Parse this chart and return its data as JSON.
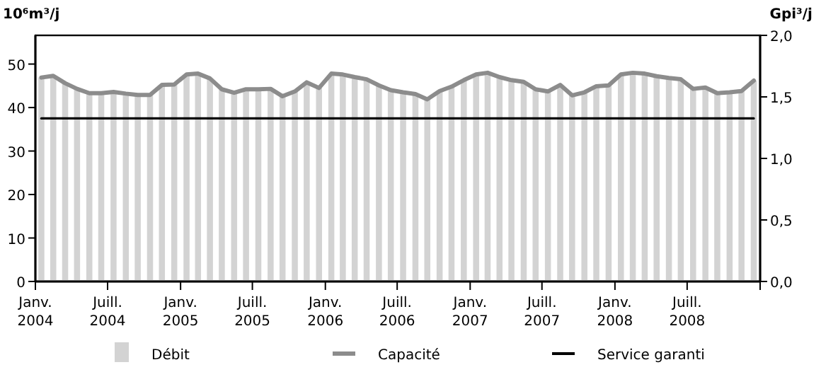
{
  "chart_data": {
    "type": "bar",
    "ylabel": "10⁶m³/j",
    "y2label": "Gpi³/j",
    "x": [
      "2004-01-16",
      "2004-02-15",
      "2004-03-16",
      "2004-04-15",
      "2004-05-16",
      "2004-06-15",
      "2004-07-16",
      "2004-08-16",
      "2004-09-15",
      "2004-10-16",
      "2004-11-15",
      "2004-12-16",
      "2005-01-16",
      "2005-02-14",
      "2005-03-16",
      "2005-04-15",
      "2005-05-16",
      "2005-06-15",
      "2005-07-16",
      "2005-08-16",
      "2005-09-15",
      "2005-10-16",
      "2005-11-15",
      "2005-12-16",
      "2006-01-16",
      "2006-02-14",
      "2006-03-16",
      "2006-04-15",
      "2006-05-16",
      "2006-06-15",
      "2006-07-16",
      "2006-08-16",
      "2006-09-15",
      "2006-10-16",
      "2006-11-15",
      "2006-12-16",
      "2007-01-16",
      "2007-02-14",
      "2007-03-16",
      "2007-04-15",
      "2007-05-16",
      "2007-06-15",
      "2007-07-16",
      "2007-08-16",
      "2007-09-15",
      "2007-10-16",
      "2007-11-15",
      "2007-12-16",
      "2008-01-16",
      "2008-02-15",
      "2008-03-16",
      "2008-04-15",
      "2008-05-16",
      "2008-06-15",
      "2008-07-16",
      "2008-08-16",
      "2008-09-15",
      "2008-10-16",
      "2008-11-15",
      "2008-12-16"
    ],
    "series": [
      {
        "name": "Débit",
        "color": "#d3d3d3",
        "values": [
          46.9,
          47.3,
          45.6,
          44.3,
          43.3,
          43.3,
          43.6,
          43.2,
          42.9,
          42.9,
          45.2,
          45.3,
          47.6,
          47.8,
          46.7,
          44.2,
          43.4,
          44.2,
          44.2,
          44.3,
          42.6,
          43.7,
          45.8,
          44.5,
          47.8,
          47.6,
          47.0,
          46.5,
          45.1,
          44.0,
          43.5,
          43.1,
          41.9,
          43.8,
          44.8,
          46.3,
          47.6,
          48.0,
          47.0,
          46.3,
          45.9,
          44.2,
          43.7,
          45.2,
          42.8,
          43.5,
          44.9,
          45.1,
          47.6,
          48.0,
          47.8,
          47.2,
          46.8,
          46.5,
          44.3,
          44.6,
          43.3,
          43.5,
          43.8,
          46.2
        ]
      },
      {
        "name": "Capacité",
        "type": "line",
        "color": "#8c8c8c",
        "values": [
          46.9,
          47.3,
          45.6,
          44.3,
          43.3,
          43.3,
          43.6,
          43.2,
          42.9,
          42.9,
          45.2,
          45.3,
          47.6,
          47.8,
          46.7,
          44.2,
          43.4,
          44.2,
          44.2,
          44.3,
          42.6,
          43.7,
          45.8,
          44.5,
          47.8,
          47.6,
          47.0,
          46.5,
          45.1,
          44.0,
          43.5,
          43.1,
          41.9,
          43.8,
          44.8,
          46.3,
          47.6,
          48.0,
          47.0,
          46.3,
          45.9,
          44.2,
          43.7,
          45.2,
          42.8,
          43.5,
          44.9,
          45.1,
          47.6,
          48.0,
          47.8,
          47.2,
          46.8,
          46.5,
          44.3,
          44.6,
          43.3,
          43.5,
          43.8,
          46.2
        ]
      },
      {
        "name": "Service garanti",
        "type": "line",
        "color": "#000000",
        "values": [
          37.5,
          37.5,
          37.5,
          37.5,
          37.5,
          37.5,
          37.5,
          37.5,
          37.5,
          37.5,
          37.5,
          37.5,
          37.5,
          37.5,
          37.5,
          37.5,
          37.5,
          37.5,
          37.5,
          37.5,
          37.5,
          37.5,
          37.5,
          37.5,
          37.5,
          37.5,
          37.5,
          37.5,
          37.5,
          37.5,
          37.5,
          37.5,
          37.5,
          37.5,
          37.5,
          37.5,
          37.5,
          37.5,
          37.5,
          37.5,
          37.5,
          37.5,
          37.5,
          37.5,
          37.5,
          37.5,
          37.5,
          37.5,
          37.5,
          37.5,
          37.5,
          37.5,
          37.5,
          37.5,
          37.5,
          37.5,
          37.5,
          37.5,
          37.5,
          37.5
        ]
      }
    ],
    "xlim": [
      "2004-01",
      "2009-01"
    ],
    "xticks": [
      {
        "value": "2004-01",
        "label": "Janv. 2004"
      },
      {
        "value": "2004-07",
        "label": "Juill. 2004"
      },
      {
        "value": "2005-01",
        "label": "Janv. 2005"
      },
      {
        "value": "2005-07",
        "label": "Juill. 2005"
      },
      {
        "value": "2006-01",
        "label": "Janv. 2006"
      },
      {
        "value": "2006-07",
        "label": "Juill. 2006"
      },
      {
        "value": "2007-01",
        "label": "Janv. 2007"
      },
      {
        "value": "2007-07",
        "label": "Juill. 2007"
      },
      {
        "value": "2008-01",
        "label": "Janv. 2008"
      },
      {
        "value": "2008-07",
        "label": "Juill. 2008"
      },
      {
        "value": "2009-01",
        "label": null
      }
    ],
    "ylim": [
      0,
      56.6
    ],
    "yticks": [
      0,
      10,
      20,
      30,
      40,
      50
    ],
    "y2lim": [
      0,
      2.0
    ],
    "y2ticks": [
      {
        "value": 0,
        "label": "0,0"
      },
      {
        "value": 0.5,
        "label": "0,5"
      },
      {
        "value": 1,
        "label": "1,0"
      },
      {
        "value": 1.5,
        "label": "1,5"
      },
      {
        "value": 2,
        "label": "2,0"
      }
    ],
    "grid": false,
    "legend": "bottom"
  }
}
